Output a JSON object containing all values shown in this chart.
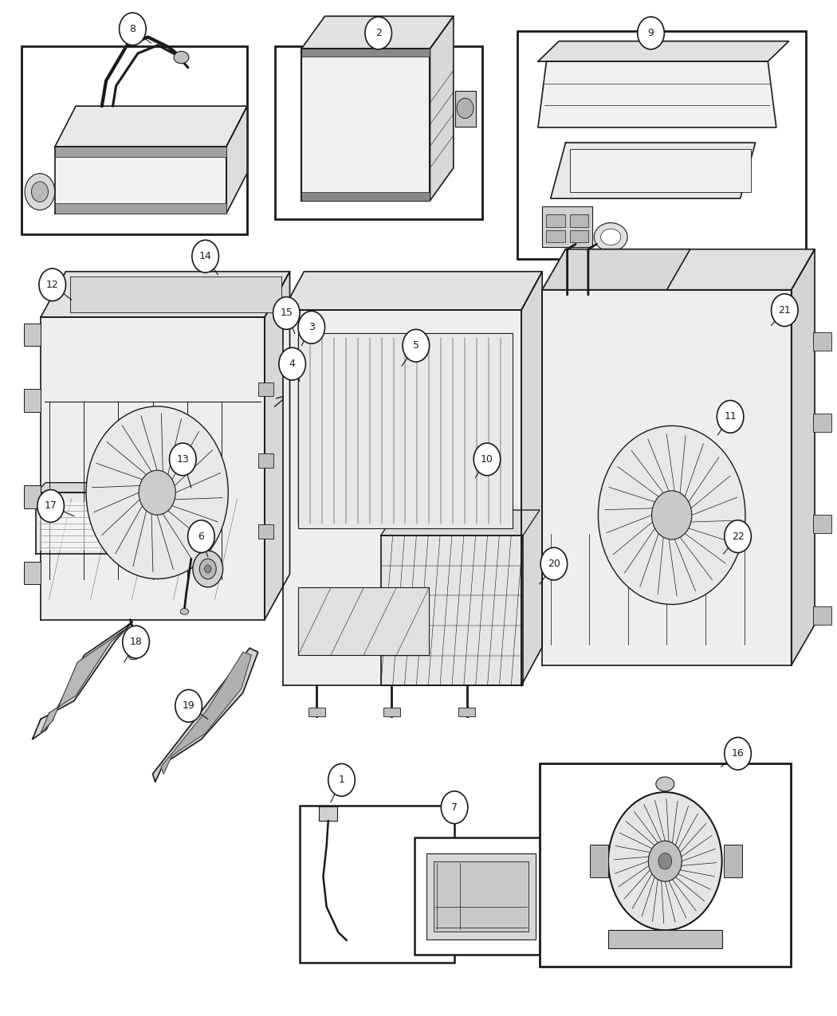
{
  "bg": "#ffffff",
  "lc": "#1a1a1a",
  "fig_w": 10.5,
  "fig_h": 12.75,
  "dpi": 100,
  "border_lw": 2.0,
  "part_lw": 1.2,
  "thin_lw": 0.6,
  "callout_r": 0.016,
  "callout_fs": 9,
  "boxes": {
    "8": [
      0.025,
      0.77,
      0.27,
      0.185
    ],
    "2": [
      0.328,
      0.785,
      0.248,
      0.17
    ],
    "9": [
      0.618,
      0.745,
      0.345,
      0.225
    ],
    "35": [
      0.335,
      0.572,
      0.2,
      0.088
    ],
    "1b": [
      0.358,
      0.052,
      0.185,
      0.155
    ],
    "7b": [
      0.495,
      0.06,
      0.16,
      0.115
    ],
    "16b": [
      0.645,
      0.048,
      0.3,
      0.2
    ]
  },
  "callouts": {
    "1": [
      0.408,
      0.232,
      0.395,
      0.21
    ],
    "2": [
      0.452,
      0.968,
      0.452,
      0.955
    ],
    "3": [
      0.372,
      0.678,
      0.36,
      0.66
    ],
    "4": [
      0.349,
      0.642,
      0.358,
      0.625
    ],
    "5": [
      0.497,
      0.66,
      0.48,
      0.64
    ],
    "6": [
      0.24,
      0.472,
      0.248,
      0.452
    ],
    "7": [
      0.543,
      0.205,
      0.543,
      0.178
    ],
    "8": [
      0.158,
      0.972,
      0.18,
      0.958
    ],
    "9": [
      0.778,
      0.968,
      0.778,
      0.955
    ],
    "10": [
      0.582,
      0.548,
      0.568,
      0.53
    ],
    "11": [
      0.873,
      0.59,
      0.858,
      0.572
    ],
    "12": [
      0.062,
      0.72,
      0.085,
      0.705
    ],
    "13": [
      0.218,
      0.548,
      0.228,
      0.52
    ],
    "14": [
      0.245,
      0.748,
      0.26,
      0.73
    ],
    "15": [
      0.342,
      0.692,
      0.352,
      0.672
    ],
    "16": [
      0.882,
      0.258,
      0.862,
      0.245
    ],
    "17": [
      0.06,
      0.502,
      0.088,
      0.492
    ],
    "18": [
      0.162,
      0.368,
      0.148,
      0.348
    ],
    "19": [
      0.225,
      0.305,
      0.248,
      0.292
    ],
    "20": [
      0.662,
      0.445,
      0.645,
      0.425
    ],
    "21": [
      0.938,
      0.695,
      0.922,
      0.68
    ],
    "22": [
      0.882,
      0.472,
      0.865,
      0.455
    ]
  }
}
